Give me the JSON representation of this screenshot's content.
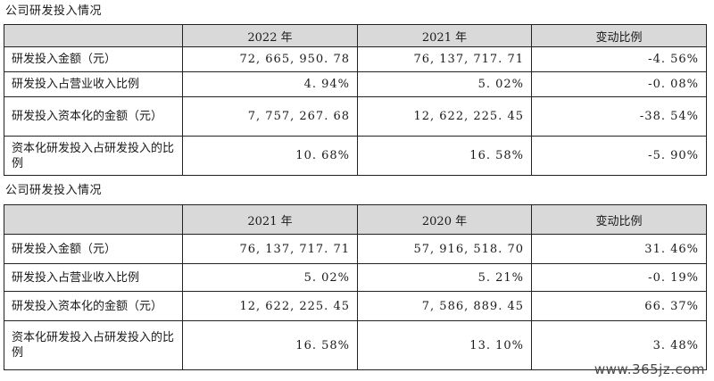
{
  "table1": {
    "caption": "公司研发投入情况",
    "headers": [
      "",
      "2022 年",
      "2021 年",
      "变动比例"
    ],
    "rows": [
      {
        "label": "研发投入金额（元）",
        "v1": "72, 665, 950. 78",
        "v2": "76, 137, 717. 71",
        "change": "-4. 56%"
      },
      {
        "label": "研发投入占营业收入比例",
        "v1": "4. 94%",
        "v2": "5. 02%",
        "change": "-0. 08%"
      },
      {
        "label": "研发投入资本化的金额（元）",
        "v1": "7, 757, 267. 68",
        "v2": "12, 622, 225. 45",
        "change": "-38. 54%"
      },
      {
        "label": "资本化研发投入占研发投入的比例",
        "v1": "10. 68%",
        "v2": "16. 58%",
        "change": "-5. 90%"
      }
    ]
  },
  "table2": {
    "caption": "公司研发投入情况",
    "headers": [
      "",
      "2021 年",
      "2020 年",
      "变动比例"
    ],
    "rows": [
      {
        "label": "研发投入金额（元）",
        "v1": "76, 137, 717. 71",
        "v2": "57, 916, 518. 70",
        "change": "31. 46%"
      },
      {
        "label": "研发投入占营业收入比例",
        "v1": "5. 02%",
        "v2": "5. 21%",
        "change": "-0. 19%"
      },
      {
        "label": "研发投入资本化的金额（元）",
        "v1": "12, 622, 225. 45",
        "v2": "7, 586, 889. 45",
        "change": "66. 37%"
      },
      {
        "label": "资本化研发投入占研发投入的比例",
        "v1": "16. 58%",
        "v2": "13. 10%",
        "change": "3. 48%"
      }
    ]
  },
  "watermark": "www.365jz.com"
}
